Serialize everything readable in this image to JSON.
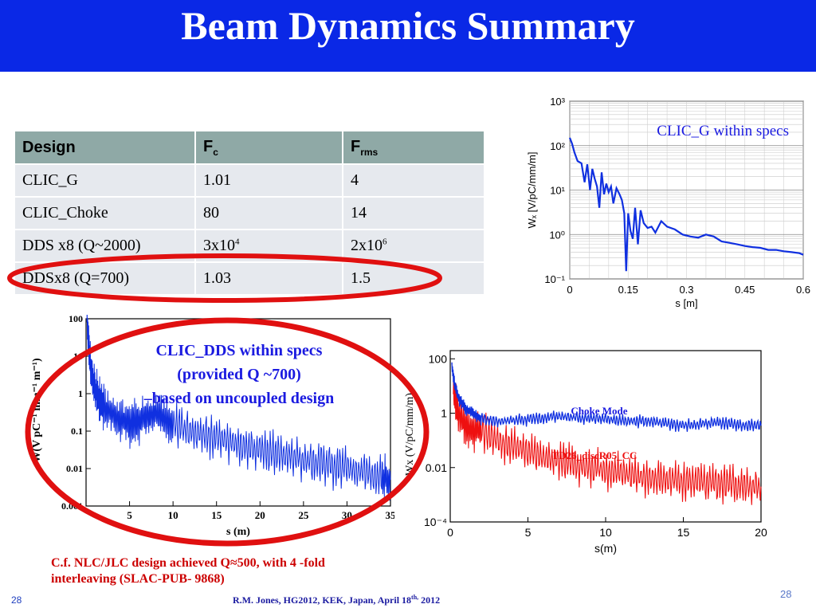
{
  "header": {
    "title": "Beam Dynamics Summary"
  },
  "table": {
    "headers": {
      "design": "Design",
      "fc_main": "F",
      "fc_sub": "c",
      "frms_main": "F",
      "frms_sub": "rms"
    },
    "rows": [
      {
        "design": "CLIC_G",
        "fc": "1.01",
        "frms": "4"
      },
      {
        "design": "CLIC_Choke",
        "fc": "80",
        "frms": "14"
      },
      {
        "design": "DDS x8 (Q~2000)",
        "fc_base": "3x10",
        "fc_exp": "4",
        "frms_base": "2x10",
        "frms_exp": "6"
      },
      {
        "design": "DDSx8 (Q=700)",
        "fc": "1.03",
        "frms": "1.5"
      }
    ]
  },
  "notes": {
    "dds_line1": "CLIC_DDS within specs",
    "dds_line2": "(provided Q ~700)",
    "dds_line3": "–based on uncoupled design",
    "nlc_line1": "C.f. NLC/JLC design achieved Q≈500, with 4 -fold",
    "nlc_line2": "interleaving  (SLAC-PUB- 9868)"
  },
  "footer": {
    "left": "28",
    "center_main": "R.M. Jones, HG2012, KEK, Japan, April 18",
    "center_sup": "th,",
    "center_end": " 2012",
    "right": "28"
  },
  "colors": {
    "title_bar": "#0a28e6",
    "series_blue": "#1030e0",
    "series_red": "#ee1010",
    "ellipse": "#e01010",
    "table_header": "#8fa9a6",
    "table_cell": "#e6e9ee"
  },
  "chart_data": [
    {
      "type": "line",
      "annotation": "CLIC_G within specs",
      "xlabel": "s [m]",
      "ylabel": "Wₓ [V/pC/mm/m]",
      "xlim": [
        0,
        0.6
      ],
      "ylim": [
        0.1,
        1000
      ],
      "yscale": "log",
      "xticks": [
        "0",
        "0.15",
        "0.3",
        "0.45",
        "0.6"
      ],
      "yticks": [
        "10⁻¹",
        "10⁰",
        "10¹",
        "10²",
        "10³"
      ],
      "grid": true,
      "series": [
        {
          "x": [
            0,
            0.006,
            0.012,
            0.02,
            0.03,
            0.038,
            0.045,
            0.052,
            0.058,
            0.064,
            0.07,
            0.076,
            0.082,
            0.088,
            0.094,
            0.1,
            0.106,
            0.112,
            0.12,
            0.128,
            0.134,
            0.14,
            0.145,
            0.15,
            0.156,
            0.162,
            0.168,
            0.175,
            0.182,
            0.19,
            0.2,
            0.21,
            0.22,
            0.235,
            0.25,
            0.27,
            0.29,
            0.31,
            0.33,
            0.35,
            0.37,
            0.39,
            0.41,
            0.43,
            0.45,
            0.47,
            0.49,
            0.51,
            0.53,
            0.55,
            0.57,
            0.59,
            0.6
          ],
          "y": [
            150,
            110,
            70,
            45,
            40,
            15,
            38,
            10,
            30,
            18,
            12,
            4,
            25,
            8,
            14,
            9,
            12,
            5,
            11,
            8,
            6,
            3,
            0.15,
            3,
            1.2,
            0.8,
            4,
            0.6,
            3.5,
            1.8,
            1.4,
            1.5,
            1.1,
            2,
            1.5,
            1.3,
            1.0,
            0.9,
            0.85,
            1.0,
            0.9,
            0.7,
            0.65,
            0.6,
            0.55,
            0.52,
            0.5,
            0.45,
            0.45,
            0.42,
            0.4,
            0.38,
            0.35
          ]
        }
      ]
    },
    {
      "type": "line",
      "xlabel": "s (m)",
      "ylabel": "W(V pC⁻¹ mm⁻¹ m⁻¹)",
      "xlim": [
        0,
        35
      ],
      "ylim": [
        0.001,
        100
      ],
      "yscale": "log",
      "xticks": [
        "5",
        "10",
        "15",
        "20",
        "25",
        "30",
        "35"
      ],
      "yticks": [
        "0.001",
        "0.01",
        "0.1",
        "1",
        "10",
        "100"
      ],
      "series": [
        {
          "x": [
            0.1,
            0.5,
            1,
            1.5,
            2,
            3,
            4,
            5,
            6,
            7,
            8,
            9,
            10,
            12,
            14,
            16,
            18,
            20,
            22,
            24,
            26,
            28,
            30,
            32,
            34,
            35
          ],
          "y": [
            80,
            5,
            1.5,
            0.7,
            0.45,
            0.3,
            0.2,
            0.15,
            0.18,
            0.25,
            0.28,
            0.22,
            0.15,
            0.1,
            0.08,
            0.06,
            0.04,
            0.03,
            0.025,
            0.02,
            0.015,
            0.012,
            0.01,
            0.008,
            0.006,
            0.005
          ]
        }
      ]
    },
    {
      "type": "line",
      "xlabel": "s(m)",
      "ylabel": "Wx (V/pC/mm/m)",
      "xlim": [
        0,
        20
      ],
      "ylim": [
        0.0001,
        200
      ],
      "yscale": "log",
      "xticks": [
        "0",
        "5",
        "10",
        "15",
        "20"
      ],
      "yticks": [
        "10⁻⁴",
        "0.01",
        "1",
        "100"
      ],
      "series": [
        {
          "name": "Choke Mode",
          "x": [
            0.1,
            0.3,
            0.6,
            1,
            1.5,
            2,
            3,
            4,
            5,
            6,
            7,
            8,
            9,
            10,
            11,
            12,
            13,
            14,
            15,
            16,
            17,
            18,
            19,
            20
          ],
          "y": [
            60,
            10,
            3,
            1.5,
            1.0,
            0.6,
            0.5,
            0.55,
            0.6,
            0.7,
            0.75,
            0.7,
            0.65,
            0.6,
            0.55,
            0.5,
            0.5,
            0.4,
            0.35,
            0.4,
            0.45,
            0.4,
            0.35,
            0.35
          ]
        },
        {
          "name": "TD26_discR05_CC",
          "x": [
            0.2,
            0.5,
            1,
            1.5,
            2,
            3,
            4,
            5,
            6,
            7,
            8,
            9,
            10,
            11,
            12,
            13,
            14,
            15,
            16,
            17,
            18,
            19,
            20
          ],
          "y": [
            5,
            1,
            0.3,
            0.2,
            0.25,
            0.1,
            0.06,
            0.04,
            0.02,
            0.02,
            0.012,
            0.01,
            0.008,
            0.006,
            0.005,
            0.004,
            0.004,
            0.003,
            0.003,
            0.0025,
            0.0025,
            0.002,
            0.002
          ]
        }
      ]
    }
  ]
}
